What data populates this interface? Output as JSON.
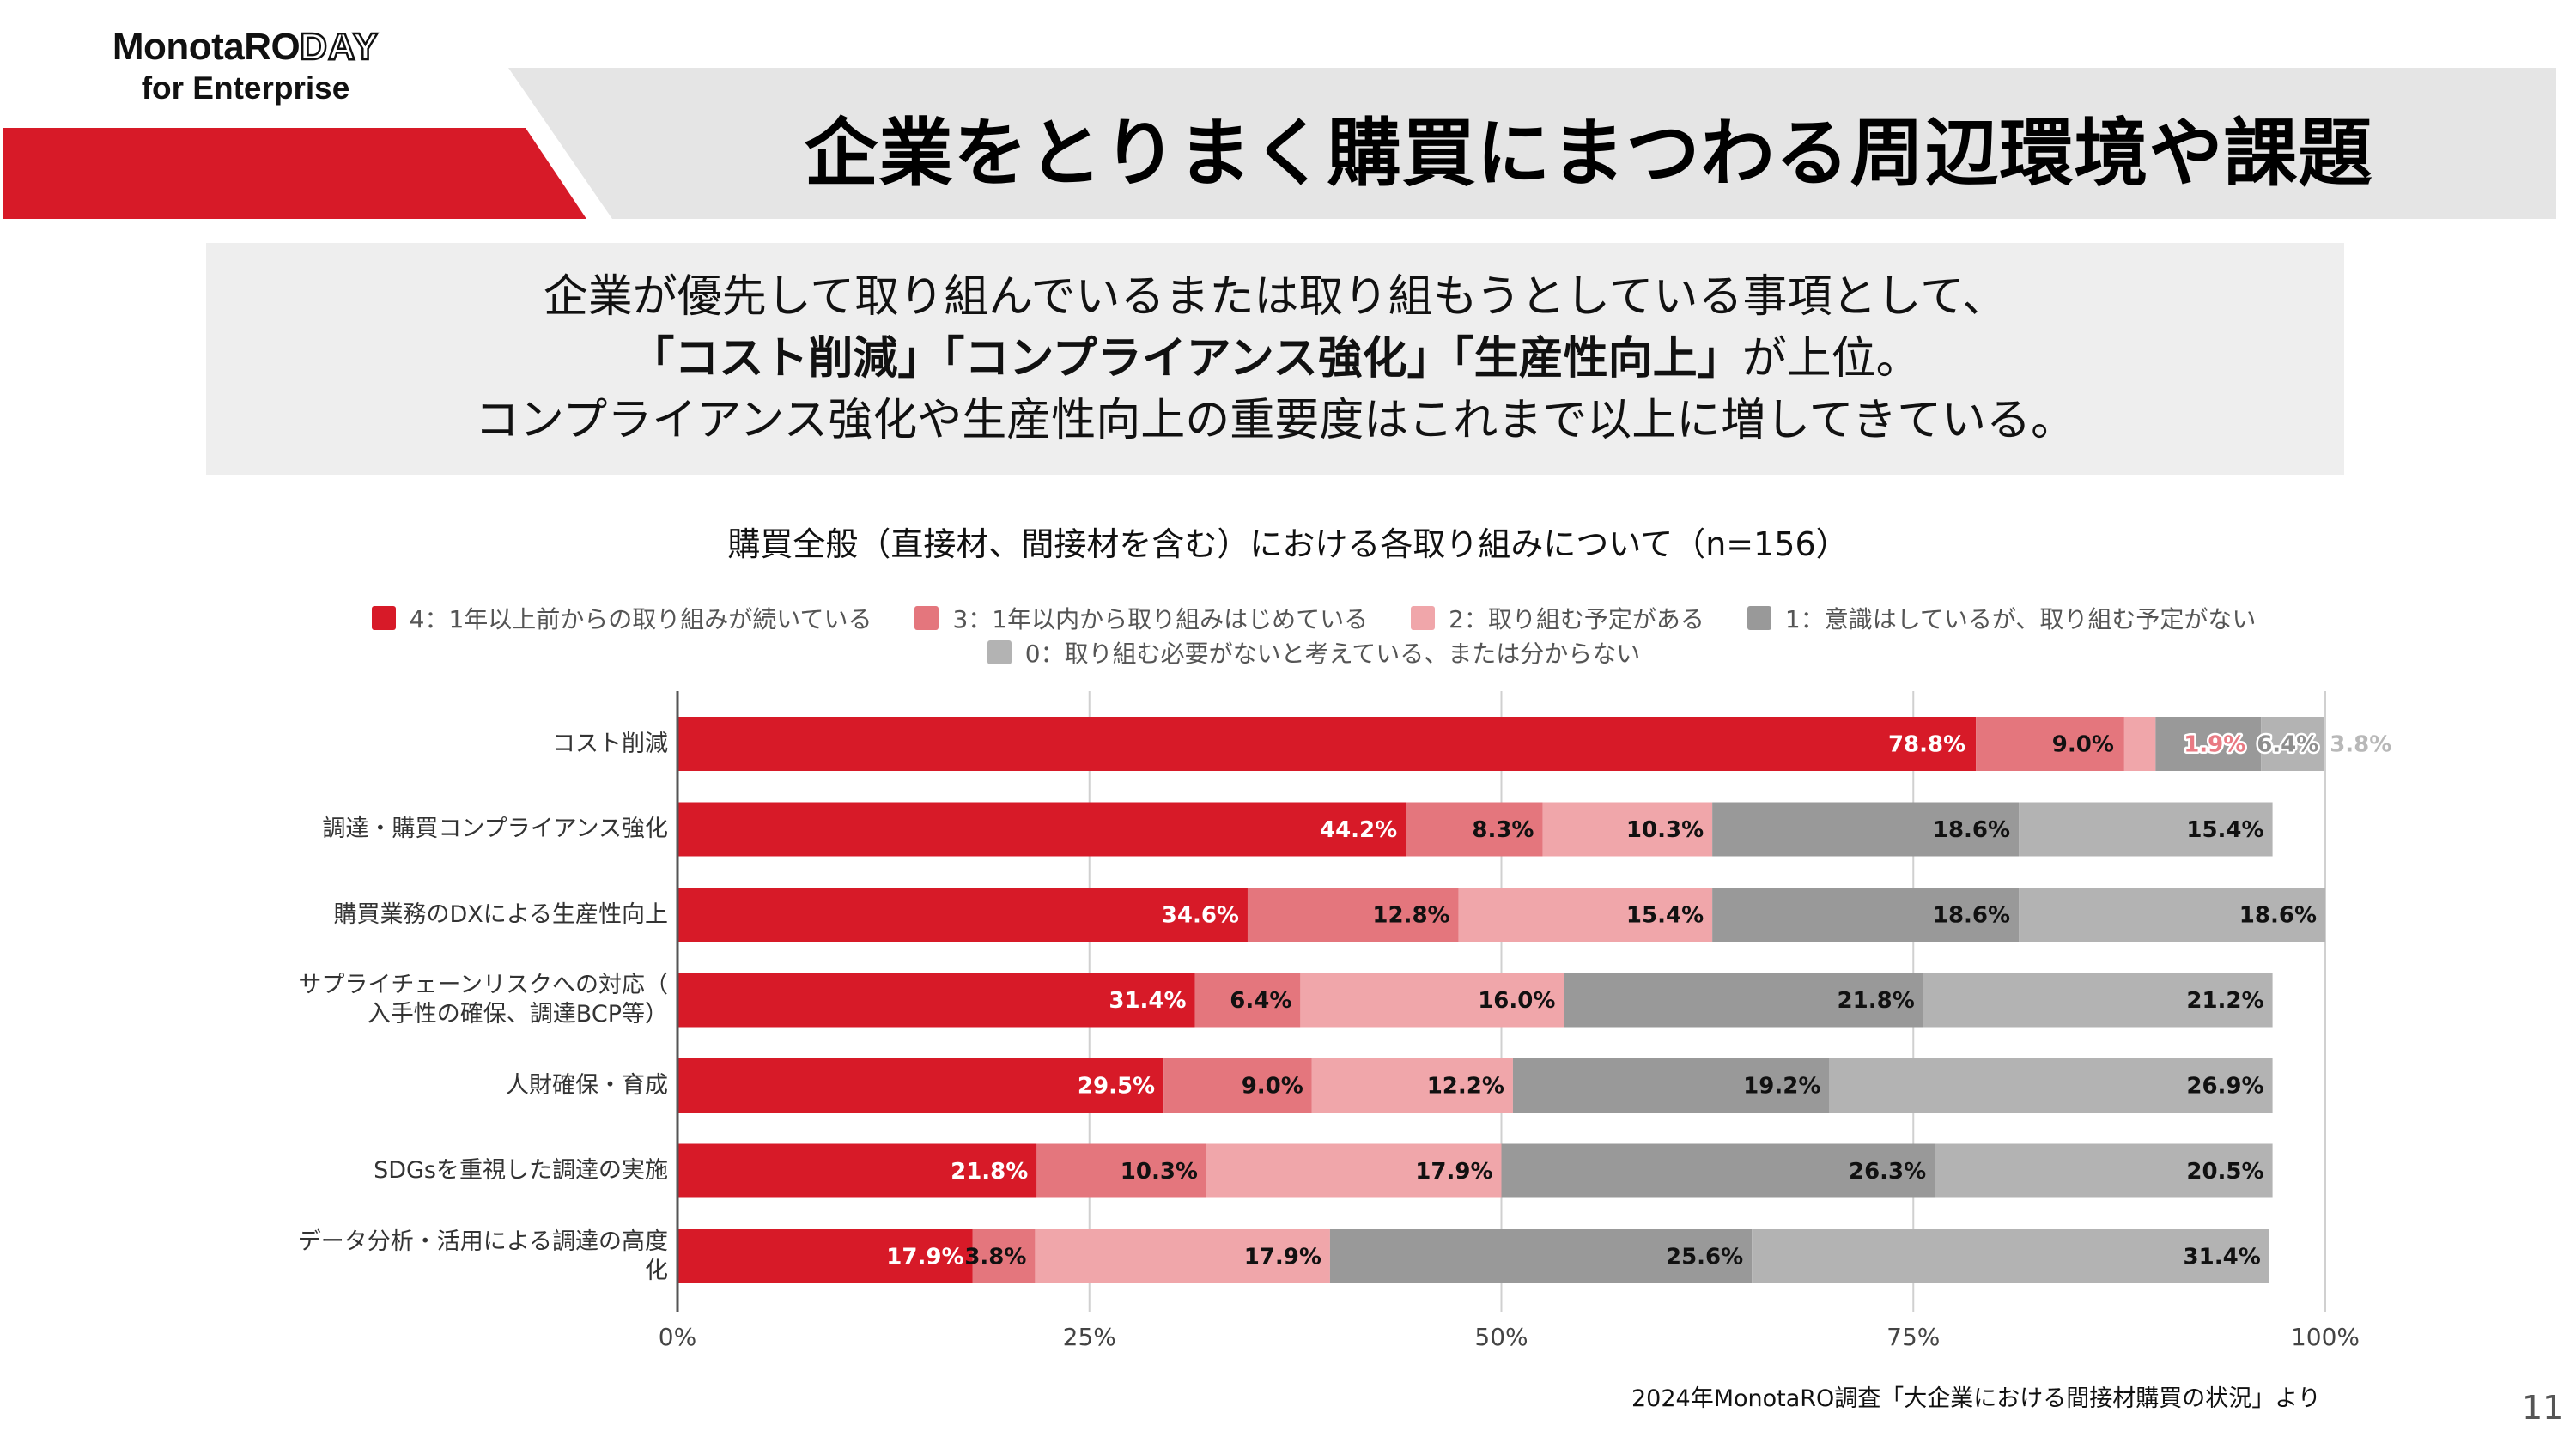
{
  "brand": {
    "logo_main": "MonotaRO",
    "logo_day": "DAY",
    "logo_sub": "for Enterprise",
    "accent_color": "#d71a28",
    "banner_gray": "#e5e5e5"
  },
  "header": {
    "title": "企業をとりまく購買にまつわる周辺環境や課題"
  },
  "summary": {
    "line1": "企業が優先して取り組んでいるまたは取り組もうとしている事項として、",
    "line2_bold": "「コスト削減」「コンプライアンス強化」「生産性向上」",
    "line2_rest": "が上位。",
    "line3": "コンプライアンス強化や生産性向上の重要度はこれまで以上に増してきている。"
  },
  "chart_data": {
    "type": "bar",
    "orientation": "horizontal",
    "stacked": "percent",
    "title": "購買全般（直接材、間接材を含む）における各取り組みについて（n=156）",
    "xlabel": "",
    "ylabel": "",
    "xlim": [
      0,
      100
    ],
    "x_ticks": [
      "0%",
      "25%",
      "50%",
      "75%",
      "100%"
    ],
    "x_tick_values": [
      0,
      25,
      50,
      75,
      100
    ],
    "grid": true,
    "legend_position": "top",
    "categories": [
      "コスト削減",
      "調達・購買コンプライアンス強化",
      "購買業務のDXによる生産性向上",
      "サプライチェーンリスクへの対応（入手性の確保、調達BCP等）",
      "人財確保・育成",
      "SDGsを重視した調達の実施",
      "データ分析・活用による調達の高度化"
    ],
    "category_display_lines": [
      [
        "コスト削減"
      ],
      [
        "調達・購買コンプライアンス強化"
      ],
      [
        "購買業務のDXによる生産性向上"
      ],
      [
        "サプライチェーンリスクへの対応（",
        "入手性の確保、調達BCP等）"
      ],
      [
        "人財確保・育成"
      ],
      [
        "SDGsを重視した調達の実施"
      ],
      [
        "データ分析・活用による調達の高度",
        "化"
      ]
    ],
    "series": [
      {
        "name": "4：1年以上前からの取り組みが続いている",
        "color": "#d71a28",
        "label_color": "#ffffff",
        "values": [
          78.8,
          44.2,
          34.6,
          31.4,
          29.5,
          21.8,
          17.9
        ]
      },
      {
        "name": "3：1年以内から取り組みはじめている",
        "color": "#e4767d",
        "label_color": "#111111",
        "values": [
          9.0,
          8.3,
          12.8,
          6.4,
          9.0,
          10.3,
          3.8
        ]
      },
      {
        "name": "2：取り組む予定がある",
        "color": "#f0a6aa",
        "label_color": "#111111",
        "values": [
          1.9,
          10.3,
          15.4,
          16.0,
          12.2,
          17.9,
          17.9
        ]
      },
      {
        "name": "1：意識はしているが、取り組む予定がない",
        "color": "#999999",
        "label_color": "#111111",
        "values": [
          6.4,
          18.6,
          18.6,
          21.8,
          19.2,
          26.3,
          25.6
        ]
      },
      {
        "name": "0：取り組む必要がないと考えている、または分からない",
        "color": "#b3b3b3",
        "label_color": "#111111",
        "values": [
          3.8,
          15.4,
          18.6,
          21.2,
          26.9,
          20.5,
          31.4
        ]
      }
    ],
    "labels": [
      [
        "78.8%",
        "9.0%",
        "1.9%",
        "6.4%",
        "3.8%"
      ],
      [
        "44.2%",
        "8.3%",
        "10.3%",
        "18.6%",
        "15.4%"
      ],
      [
        "34.6%",
        "12.8%",
        "15.4%",
        "18.6%",
        "18.6%"
      ],
      [
        "31.4%",
        "6.4%",
        "16.0%",
        "21.8%",
        "21.2%"
      ],
      [
        "29.5%",
        "9.0%",
        "12.2%",
        "19.2%",
        "26.9%"
      ],
      [
        "21.8%",
        "10.3%",
        "17.9%",
        "26.3%",
        "20.5%"
      ],
      [
        "17.9%",
        "3.8%",
        "17.9%",
        "25.6%",
        "31.4%"
      ]
    ]
  },
  "legend": {
    "row1": [
      0,
      1,
      2,
      3
    ],
    "row2": [
      4
    ]
  },
  "footer": {
    "source": "2024年MonotaRO調査「大企業における間接材購買の状況」より",
    "page_number": "11"
  }
}
